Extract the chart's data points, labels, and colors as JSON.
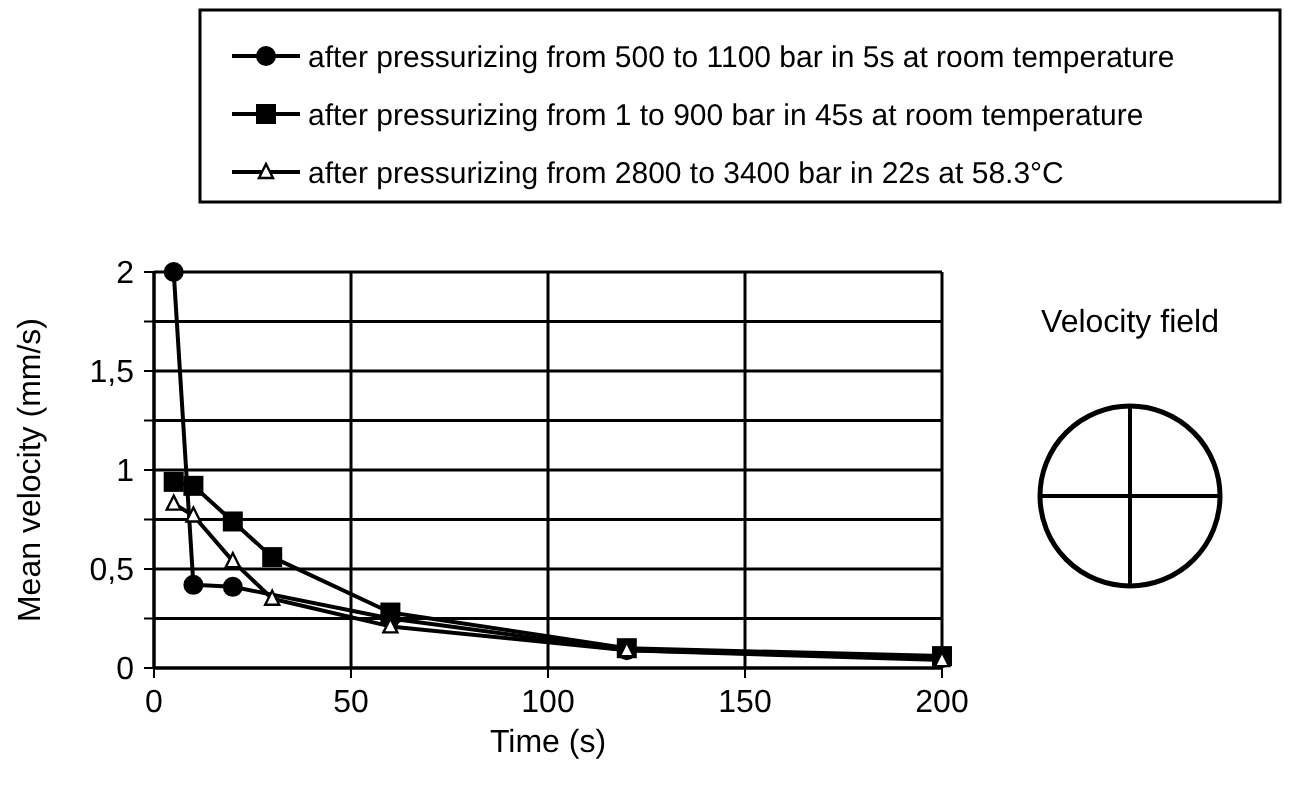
{
  "chart_data": {
    "type": "line",
    "xlabel": "Time (s)",
    "ylabel": "Mean velocity (mm/s)",
    "xlim": [
      0,
      200
    ],
    "xticks": [
      0,
      50,
      100,
      150,
      200
    ],
    "ylim": [
      0,
      2
    ],
    "yticks": [
      0,
      {
        "value": 0.25,
        "label": null
      },
      {
        "value": 0.5,
        "label": "0,5"
      },
      {
        "value": 0.75,
        "label": null
      },
      1,
      {
        "value": 1.25,
        "label": null
      },
      {
        "value": 1.5,
        "label": "1,5"
      },
      {
        "value": 1.75,
        "label": null
      },
      2
    ],
    "grid": true,
    "legend": "top",
    "line_style": "solid",
    "annotations": [
      "Velocity field"
    ],
    "series": [
      {
        "name": "after pressurizing from 500 to 1100 bar in 5s at room temperature",
        "color": "#000000",
        "marker": "circle",
        "x": [
          5,
          10,
          20,
          30,
          60,
          120,
          200
        ],
        "values": [
          2,
          0.42,
          0.41,
          null,
          0.25,
          0.09,
          0.05
        ]
      },
      {
        "name": "after pressurizing from 1 to 900 bar in 45s at room temperature",
        "color": "#000000",
        "marker": "square",
        "x": [
          5,
          10,
          20,
          30,
          60,
          120,
          200
        ],
        "values": [
          0.94,
          0.92,
          0.74,
          0.56,
          0.28,
          0.1,
          0.06
        ]
      },
      {
        "name": "after pressurizing from 2800 to 3400 bar in 22s at 58.3°C",
        "color": "#000000",
        "marker": "triangle",
        "x": [
          5,
          10,
          20,
          30,
          60,
          120,
          200
        ],
        "values": [
          0.83,
          0.77,
          0.54,
          0.35,
          0.21,
          0.09,
          0.04
        ]
      }
    ]
  }
}
